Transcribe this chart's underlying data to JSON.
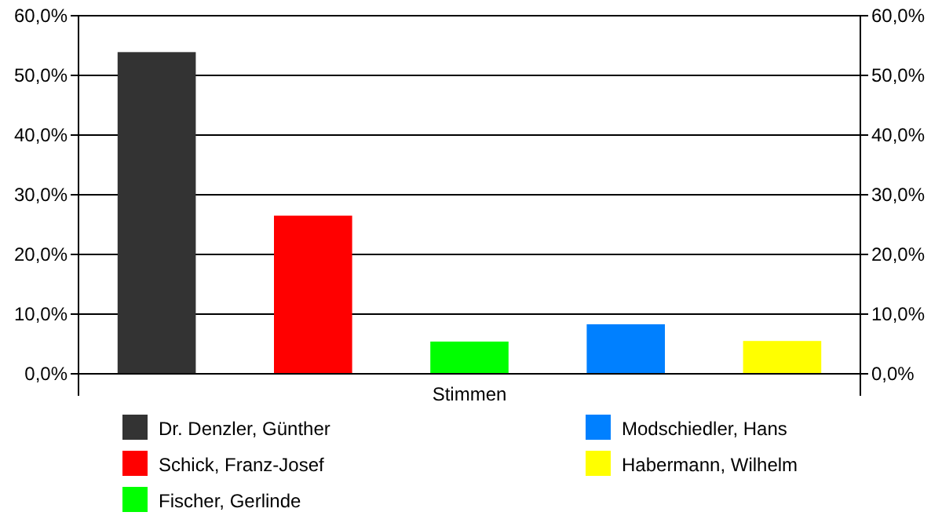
{
  "chart_data": {
    "type": "bar",
    "categories": [
      "Stimmen"
    ],
    "series": [
      {
        "name": "Dr. Denzler, Günther",
        "color": "#333333",
        "values": [
          53.9
        ]
      },
      {
        "name": "Schick, Franz-Josef",
        "color": "#ff0000",
        "values": [
          26.5
        ]
      },
      {
        "name": "Fischer, Gerlinde",
        "color": "#00ff00",
        "values": [
          5.4
        ]
      },
      {
        "name": "Modschiedler, Hans",
        "color": "#0080ff",
        "values": [
          8.3
        ]
      },
      {
        "name": "Habermann, Wilhelm",
        "color": "#ffff00",
        "values": [
          5.5
        ]
      }
    ],
    "ylim": [
      0,
      60
    ],
    "yticks": [
      {
        "value": 0,
        "label": "0,0%"
      },
      {
        "value": 10,
        "label": "10,0%"
      },
      {
        "value": 20,
        "label": "20,0%"
      },
      {
        "value": 30,
        "label": "30,0%"
      },
      {
        "value": 40,
        "label": "40,0%"
      },
      {
        "value": 50,
        "label": "50,0%"
      },
      {
        "value": 60,
        "label": "60,0%"
      }
    ],
    "grid": "y",
    "legend": "bottom"
  }
}
